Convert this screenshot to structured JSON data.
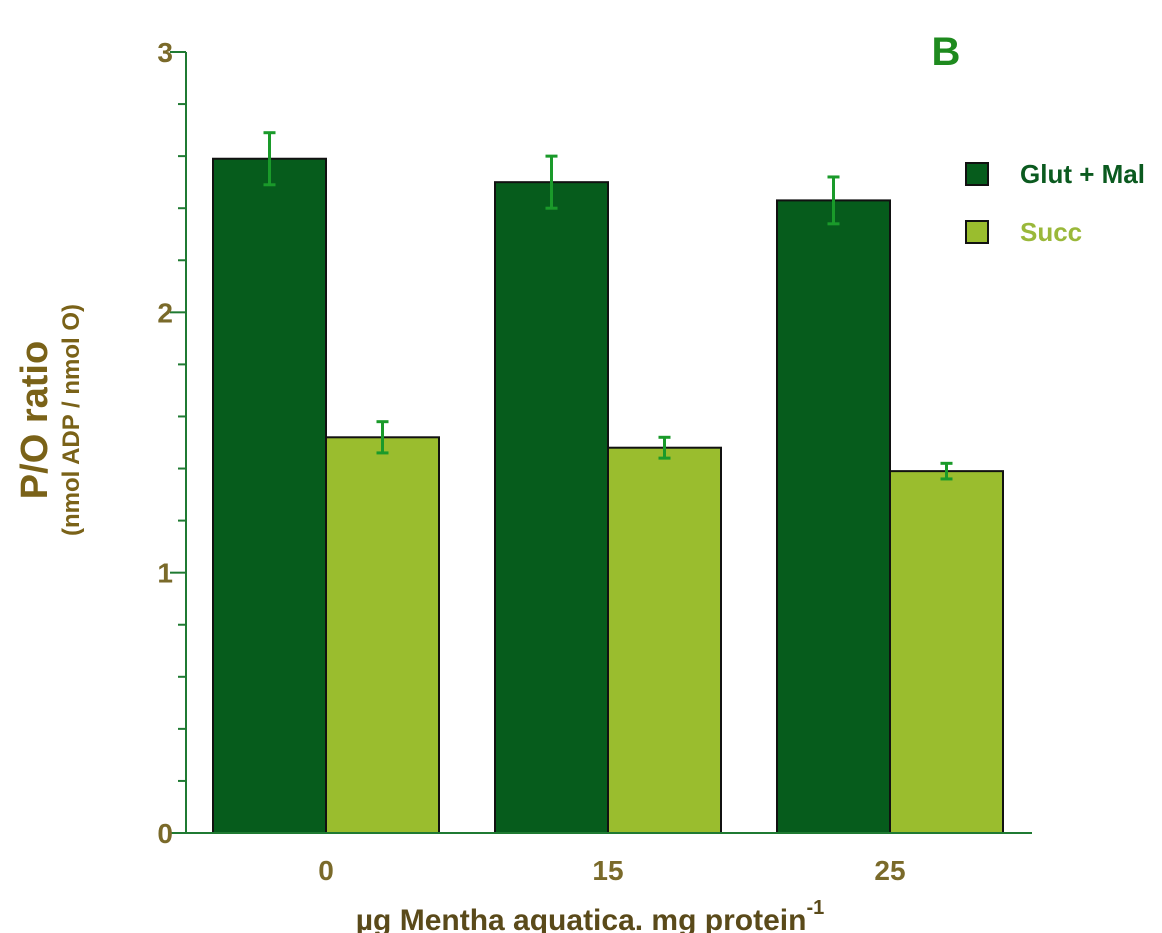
{
  "chart_data": {
    "type": "bar",
    "panel_label": "B",
    "categories": [
      "0",
      "15",
      "25"
    ],
    "series": [
      {
        "name": "Glut + Mal",
        "values": [
          2.59,
          2.5,
          2.43
        ],
        "errors": [
          0.1,
          0.1,
          0.09
        ]
      },
      {
        "name": "Succ",
        "values": [
          1.52,
          1.48,
          1.39
        ],
        "errors": [
          0.06,
          0.04,
          0.03
        ]
      }
    ],
    "ylim": [
      0,
      3
    ],
    "yticks": [
      "0",
      "1",
      "2",
      "3"
    ],
    "ylabel": "P/O ratio",
    "ylabel_sub": "(nmol ADP / nmol O)",
    "xlabel": "µg Mentha aquatica. mg protein",
    "xlabel_sup": "-1",
    "legend_position": "top-right",
    "grid": false
  },
  "colors": {
    "series": [
      "#065c1c",
      "#9abd2e"
    ],
    "axis": "#1f7a32",
    "error_bars": "#1a9a2a",
    "tick_text": "#7a6a2a",
    "panel_label": "#1e8a1e",
    "legend_text": [
      "#0b5a1f",
      "#9ab83a"
    ],
    "ylabel": "#7a6218",
    "xlabel": "#5a4a1a"
  }
}
